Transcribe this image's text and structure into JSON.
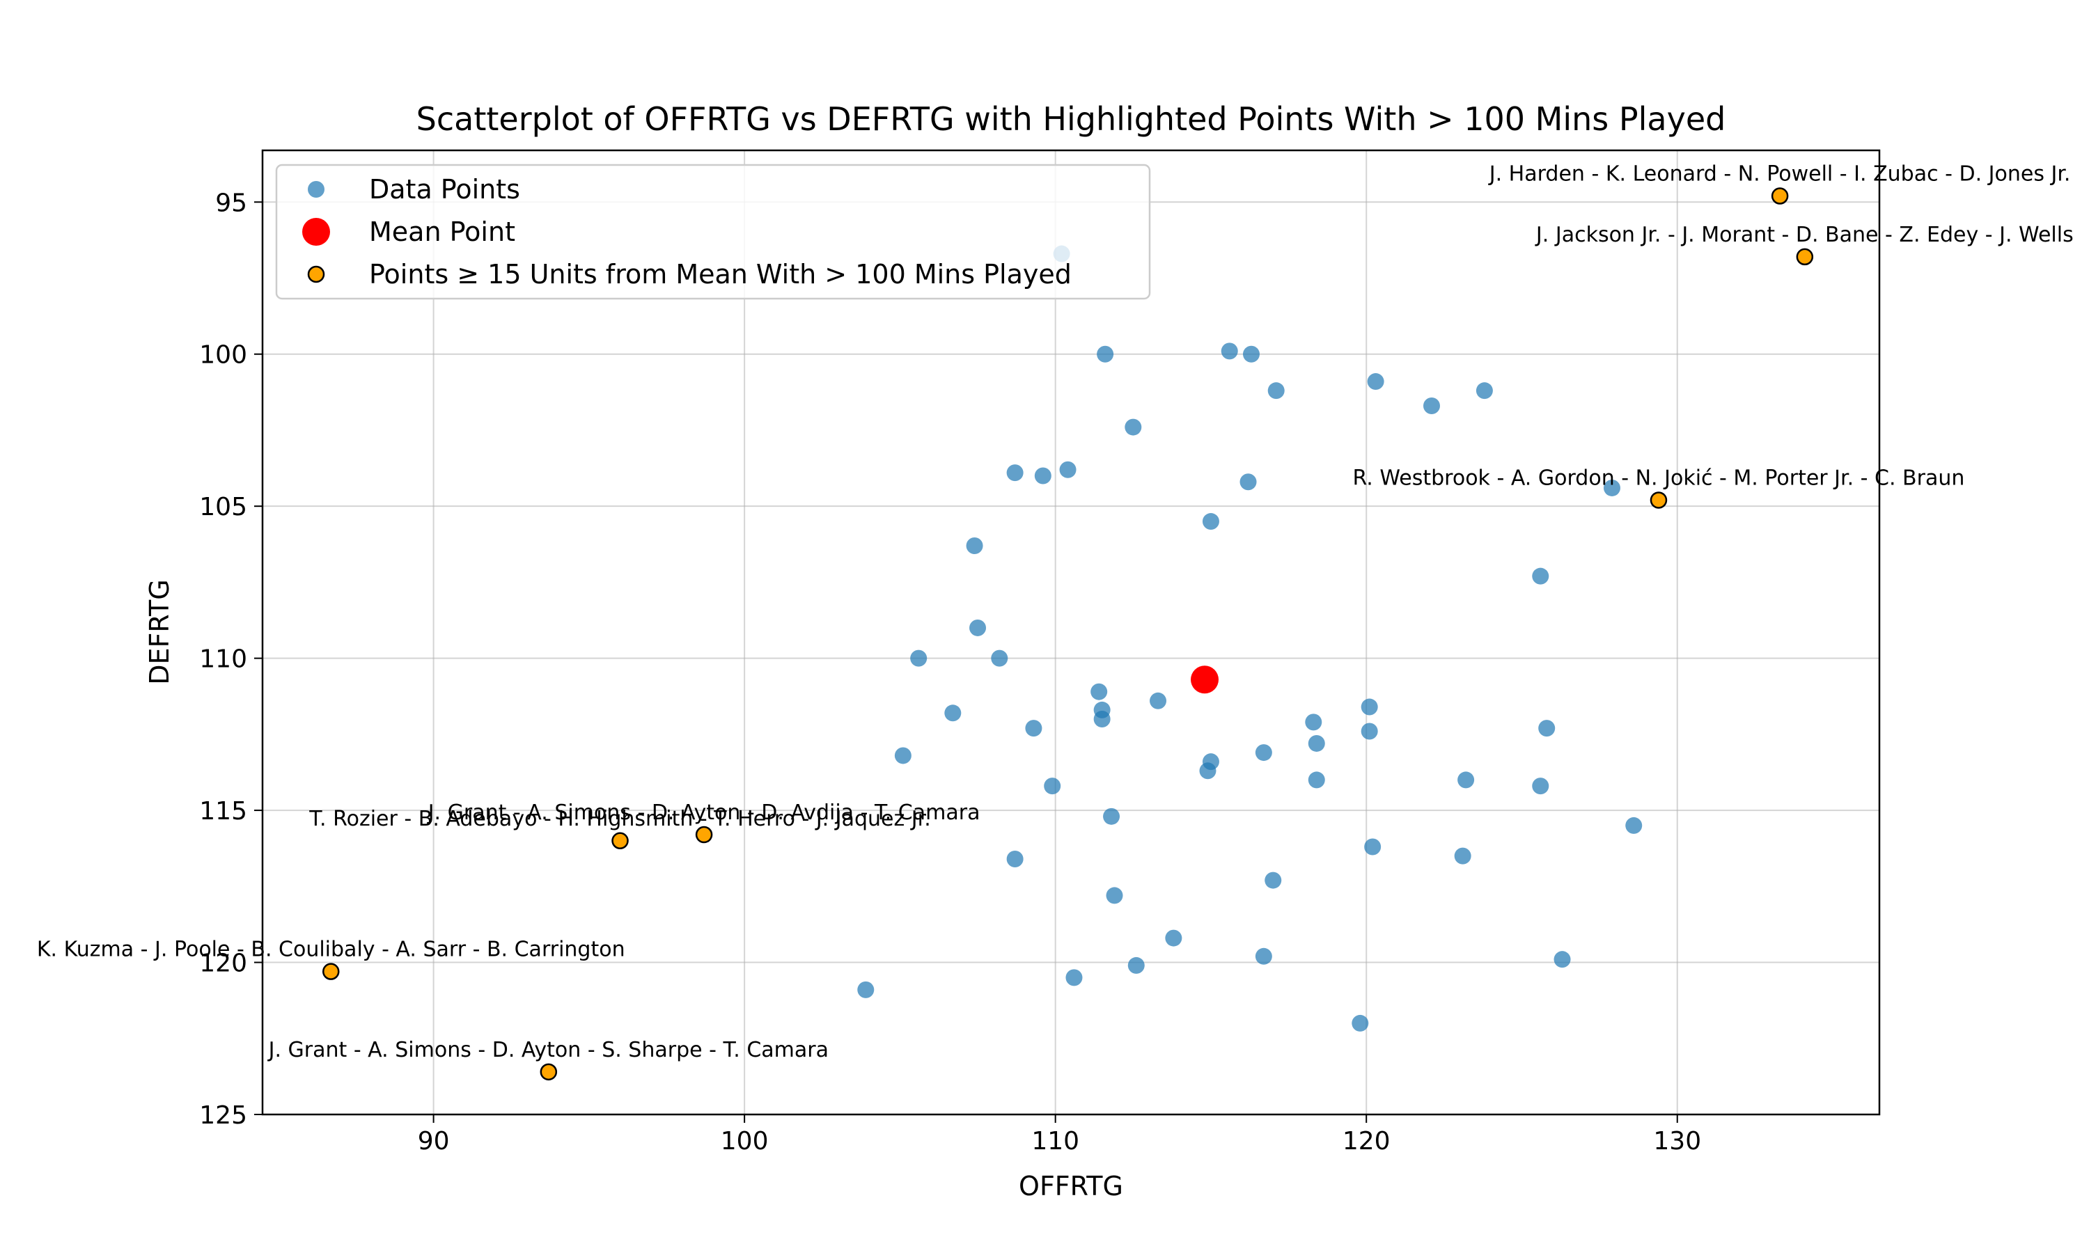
{
  "chart_data": {
    "type": "scatter",
    "title": "Scatterplot of OFFRTG vs DEFRTG with Highlighted Points With > 100 Mins Played",
    "xlabel": "OFFRTG",
    "ylabel": "DEFRTG",
    "xlim": [
      84.5,
      136.5
    ],
    "ylim": [
      125,
      93.3
    ],
    "y_inverted": true,
    "grid": true,
    "legend_position": "top-left",
    "xticks": [
      "90",
      "100",
      "110",
      "120",
      "130"
    ],
    "xtick_values": [
      90,
      100,
      110,
      120,
      130
    ],
    "yticks": [
      "95",
      "100",
      "105",
      "110",
      "115",
      "120",
      "125"
    ],
    "ytick_values": [
      95,
      100,
      105,
      110,
      115,
      120,
      125
    ],
    "colors": {
      "data": "#1f77b4",
      "mean": "#ff0000",
      "highlight": "#ffa500"
    },
    "legend": [
      {
        "label": "Data Points",
        "kind": "data"
      },
      {
        "label": "Mean Point",
        "kind": "mean"
      },
      {
        "label": "Points ≥ 15 Units from Mean With > 100 Mins Played",
        "kind": "highlight"
      }
    ],
    "series": [
      {
        "name": "Data Points",
        "points": [
          [
            110.2,
            96.7
          ],
          [
            111.6,
            100.0
          ],
          [
            115.6,
            99.9
          ],
          [
            116.3,
            100.0
          ],
          [
            117.1,
            101.2
          ],
          [
            120.3,
            100.9
          ],
          [
            122.1,
            101.7
          ],
          [
            123.8,
            101.2
          ],
          [
            112.5,
            102.4
          ],
          [
            108.7,
            103.9
          ],
          [
            109.6,
            104.0
          ],
          [
            110.4,
            103.8
          ],
          [
            116.2,
            104.2
          ],
          [
            127.9,
            104.4
          ],
          [
            115.0,
            105.5
          ],
          [
            107.4,
            106.3
          ],
          [
            125.6,
            107.3
          ],
          [
            107.5,
            109.0
          ],
          [
            105.6,
            110.0
          ],
          [
            108.2,
            110.0
          ],
          [
            111.4,
            111.1
          ],
          [
            113.3,
            111.4
          ],
          [
            111.5,
            111.7
          ],
          [
            111.5,
            112.0
          ],
          [
            106.7,
            111.8
          ],
          [
            109.3,
            112.3
          ],
          [
            120.1,
            111.6
          ],
          [
            118.3,
            112.1
          ],
          [
            125.8,
            112.3
          ],
          [
            120.1,
            112.4
          ],
          [
            118.4,
            112.8
          ],
          [
            105.1,
            113.2
          ],
          [
            116.7,
            113.1
          ],
          [
            115.0,
            113.4
          ],
          [
            114.9,
            113.7
          ],
          [
            118.4,
            114.0
          ],
          [
            123.2,
            114.0
          ],
          [
            125.6,
            114.2
          ],
          [
            109.9,
            114.2
          ],
          [
            111.8,
            115.2
          ],
          [
            128.6,
            115.5
          ],
          [
            120.2,
            116.2
          ],
          [
            123.1,
            116.5
          ],
          [
            108.7,
            116.6
          ],
          [
            117.0,
            117.3
          ],
          [
            111.9,
            117.8
          ],
          [
            113.8,
            119.2
          ],
          [
            116.7,
            119.8
          ],
          [
            126.3,
            119.9
          ],
          [
            112.6,
            120.1
          ],
          [
            110.6,
            120.5
          ],
          [
            103.9,
            120.9
          ],
          [
            119.8,
            122.0
          ]
        ]
      },
      {
        "name": "Mean Point",
        "points": [
          [
            114.8,
            110.7
          ]
        ]
      },
      {
        "name": "Points ≥ 15 Units from Mean With > 100 Mins Played",
        "points": [
          {
            "x": 133.3,
            "y": 94.8,
            "label": "J. Harden - K. Leonard - N. Powell - I. Zubac - D. Jones Jr."
          },
          {
            "x": 134.1,
            "y": 96.8,
            "label": "J. Jackson Jr. - J. Morant - D. Bane - Z. Edey - J. Wells"
          },
          {
            "x": 129.4,
            "y": 104.8,
            "label": "R. Westbrook - A. Gordon - N. Jokić - M. Porter Jr. - C. Braun"
          },
          {
            "x": 96.0,
            "y": 116.0,
            "label": "T. Rozier - B. Adebayo - H. Highsmith - T. Herro - J. Jaquez Jr."
          },
          {
            "x": 98.7,
            "y": 115.8,
            "label": "J. Grant - A. Simons - D. Ayton - D. Avdija - T. Camara"
          },
          {
            "x": 86.7,
            "y": 120.3,
            "label": "K. Kuzma - J. Poole - B. Coulibaly - A. Sarr - B. Carrington"
          },
          {
            "x": 93.7,
            "y": 123.6,
            "label": "J. Grant - A. Simons - D. Ayton - S. Sharpe - T. Camara"
          }
        ]
      }
    ]
  }
}
